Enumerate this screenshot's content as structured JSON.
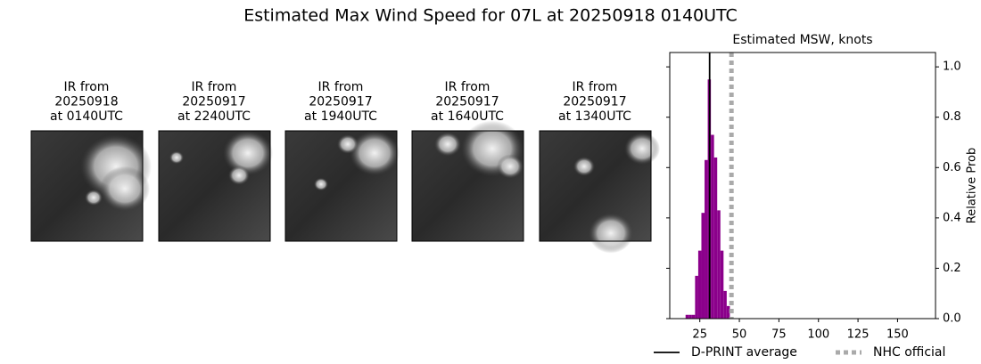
{
  "title": "Estimated Max Wind Speed for 07L at 20250918 0140UTC",
  "panels": [
    {
      "lines": [
        "IR from",
        "20250918",
        "at 0140UTC"
      ]
    },
    {
      "lines": [
        "IR from",
        "20250917",
        "at 2240UTC"
      ]
    },
    {
      "lines": [
        "IR from",
        "20250917",
        "at 1940UTC"
      ]
    },
    {
      "lines": [
        "IR from",
        "20250917",
        "at 1640UTC"
      ]
    },
    {
      "lines": [
        "IR from",
        "20250917",
        "at 1340UTC"
      ]
    }
  ],
  "chart_data": {
    "type": "histogram",
    "title": "Estimated MSW, knots",
    "bins": [
      16,
      18,
      20,
      22,
      24,
      26,
      28,
      30,
      32,
      34,
      36,
      38,
      40,
      42,
      44
    ],
    "values": [
      0.015,
      0.015,
      0.015,
      0.17,
      0.27,
      0.42,
      0.63,
      0.95,
      0.73,
      0.64,
      0.43,
      0.27,
      0.11,
      0.05
    ],
    "color": "#8b008b",
    "xlim": [
      6,
      174
    ],
    "ylim": [
      0,
      1.057
    ],
    "xticks": [
      25,
      50,
      75,
      100,
      125,
      150
    ],
    "yticks": [
      {
        "value": 0,
        "label": "0.0"
      },
      0.2,
      0.4,
      0.6,
      0.8,
      {
        "value": 1,
        "label": "1.0"
      }
    ],
    "y_label": "Relative Prob",
    "y_axis_side": "right",
    "lines": [
      {
        "name": "D-PRINT average",
        "value": 31.2,
        "color": "#000000",
        "style": "solid"
      },
      {
        "name": "NHC official",
        "value": 45,
        "color": "#aaaaaa",
        "style": "dotted"
      }
    ]
  }
}
